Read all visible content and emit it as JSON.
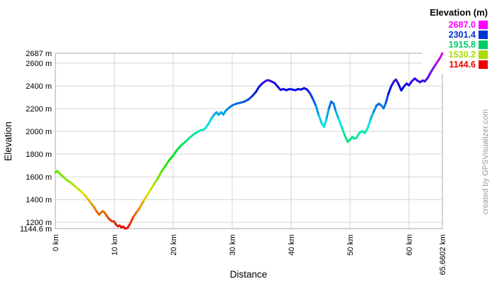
{
  "watermark": "created by GPSVisualizer.com",
  "axes": {
    "x_title": "Distance",
    "y_title": "Elevation",
    "y_ticks": [
      {
        "value": 2687,
        "label": "2687 m"
      },
      {
        "value": 2600,
        "label": "2600 m"
      },
      {
        "value": 2400,
        "label": "2400 m"
      },
      {
        "value": 2200,
        "label": "2200 m"
      },
      {
        "value": 2000,
        "label": "2000 m"
      },
      {
        "value": 1800,
        "label": "1800 m"
      },
      {
        "value": 1600,
        "label": "1600 m"
      },
      {
        "value": 1400,
        "label": "1400 m"
      },
      {
        "value": 1200,
        "label": "1200 m"
      },
      {
        "value": 1144.6,
        "label": "1144.6 m"
      }
    ],
    "x_ticks": [
      {
        "value": 0,
        "label": "0 km"
      },
      {
        "value": 10,
        "label": "10 km"
      },
      {
        "value": 20,
        "label": "20 km"
      },
      {
        "value": 30,
        "label": "30 km"
      },
      {
        "value": 40,
        "label": "40 km"
      },
      {
        "value": 50,
        "label": "50 km"
      },
      {
        "value": 60,
        "label": "60 km"
      },
      {
        "value": 65.6602,
        "label": "65.6602 km"
      }
    ]
  },
  "legend": {
    "title": "Elevation (m)",
    "entries": [
      {
        "value": "2687.0",
        "color": "#ff00ff"
      },
      {
        "value": "2301.4",
        "color": "#0033cc"
      },
      {
        "value": "1915.8",
        "color": "#00cc66"
      },
      {
        "value": "1530.2",
        "color": "#aadd00"
      },
      {
        "value": "1144.6",
        "color": "#ee0000"
      }
    ]
  },
  "colors": {
    "background": "#ffffff",
    "grid": "#d4d4d4",
    "border": "#aaaaaa",
    "watermark": "#999999",
    "tick_text": "#000000"
  },
  "chart_data": {
    "type": "line",
    "title": "",
    "xlabel": "Distance",
    "ylabel": "Elevation",
    "x_unit": "km",
    "y_unit": "m",
    "xlim": [
      0,
      65.6602
    ],
    "ylim": [
      1144.6,
      2687.0
    ],
    "grid": true,
    "legend_position": "top-right",
    "color_map": {
      "type": "elevation-rainbow",
      "hue_range_deg": [
        0,
        300
      ],
      "min_elevation": 1144.6,
      "max_elevation": 2687.0
    },
    "profile": [
      [
        0,
        1638
      ],
      [
        0.2,
        1650
      ],
      [
        0.45,
        1645
      ],
      [
        0.7,
        1630
      ],
      [
        1.1,
        1610
      ],
      [
        1.6,
        1587
      ],
      [
        2.1,
        1565
      ],
      [
        2.6,
        1550
      ],
      [
        3.1,
        1527
      ],
      [
        3.6,
        1505
      ],
      [
        4.1,
        1483
      ],
      [
        4.6,
        1460
      ],
      [
        5.1,
        1434
      ],
      [
        5.6,
        1398
      ],
      [
        6.1,
        1365
      ],
      [
        6.6,
        1330
      ],
      [
        7,
        1295
      ],
      [
        7.4,
        1268
      ],
      [
        7.7,
        1283
      ],
      [
        8,
        1298
      ],
      [
        8.3,
        1288
      ],
      [
        8.7,
        1258
      ],
      [
        9.1,
        1230
      ],
      [
        9.5,
        1213
      ],
      [
        10,
        1205
      ],
      [
        10.3,
        1180
      ],
      [
        10.6,
        1165
      ],
      [
        10.9,
        1172
      ],
      [
        11.2,
        1155
      ],
      [
        11.5,
        1163
      ],
      [
        11.8,
        1146
      ],
      [
        12.1,
        1148
      ],
      [
        12.35,
        1158
      ],
      [
        12.7,
        1190
      ],
      [
        13.2,
        1245
      ],
      [
        13.8,
        1290
      ],
      [
        14.4,
        1335
      ],
      [
        15,
        1392
      ],
      [
        15.6,
        1440
      ],
      [
        16.2,
        1490
      ],
      [
        16.8,
        1540
      ],
      [
        17.4,
        1588
      ],
      [
        18,
        1645
      ],
      [
        18.6,
        1690
      ],
      [
        19.3,
        1745
      ],
      [
        20,
        1788
      ],
      [
        20.7,
        1840
      ],
      [
        21.4,
        1880
      ],
      [
        22.1,
        1910
      ],
      [
        22.8,
        1945
      ],
      [
        23.5,
        1975
      ],
      [
        24.2,
        1998
      ],
      [
        24.7,
        2010
      ],
      [
        25.3,
        2018
      ],
      [
        25.9,
        2060
      ],
      [
        26.5,
        2115
      ],
      [
        27,
        2150
      ],
      [
        27.35,
        2168
      ],
      [
        27.7,
        2145
      ],
      [
        28.1,
        2168
      ],
      [
        28.5,
        2148
      ],
      [
        28.9,
        2180
      ],
      [
        29.4,
        2205
      ],
      [
        30,
        2228
      ],
      [
        30.7,
        2243
      ],
      [
        31.4,
        2252
      ],
      [
        32.1,
        2262
      ],
      [
        32.8,
        2282
      ],
      [
        33.4,
        2310
      ],
      [
        34,
        2345
      ],
      [
        34.6,
        2395
      ],
      [
        35.2,
        2425
      ],
      [
        35.8,
        2447
      ],
      [
        36.2,
        2450
      ],
      [
        36.7,
        2438
      ],
      [
        37.2,
        2425
      ],
      [
        37.7,
        2395
      ],
      [
        38.2,
        2365
      ],
      [
        38.7,
        2372
      ],
      [
        39.2,
        2362
      ],
      [
        39.7,
        2372
      ],
      [
        40.2,
        2368
      ],
      [
        40.7,
        2362
      ],
      [
        41.2,
        2372
      ],
      [
        41.7,
        2368
      ],
      [
        42.2,
        2380
      ],
      [
        42.7,
        2368
      ],
      [
        43.2,
        2335
      ],
      [
        43.7,
        2285
      ],
      [
        44.2,
        2225
      ],
      [
        44.7,
        2140
      ],
      [
        45.2,
        2070
      ],
      [
        45.6,
        2040
      ],
      [
        46,
        2110
      ],
      [
        46.4,
        2200
      ],
      [
        46.8,
        2262
      ],
      [
        47.2,
        2245
      ],
      [
        47.6,
        2175
      ],
      [
        48.1,
        2105
      ],
      [
        48.6,
        2035
      ],
      [
        49.1,
        1965
      ],
      [
        49.6,
        1908
      ],
      [
        50,
        1928
      ],
      [
        50.4,
        1952
      ],
      [
        50.7,
        1935
      ],
      [
        51.1,
        1943
      ],
      [
        51.6,
        1988
      ],
      [
        52.1,
        2002
      ],
      [
        52.5,
        1985
      ],
      [
        53,
        2030
      ],
      [
        53.5,
        2108
      ],
      [
        54,
        2172
      ],
      [
        54.5,
        2228
      ],
      [
        54.9,
        2243
      ],
      [
        55.3,
        2228
      ],
      [
        55.7,
        2202
      ],
      [
        56.1,
        2255
      ],
      [
        56.5,
        2330
      ],
      [
        57,
        2398
      ],
      [
        57.5,
        2443
      ],
      [
        57.8,
        2455
      ],
      [
        58.2,
        2418
      ],
      [
        58.7,
        2360
      ],
      [
        59.2,
        2398
      ],
      [
        59.6,
        2420
      ],
      [
        60,
        2405
      ],
      [
        60.5,
        2442
      ],
      [
        61,
        2465
      ],
      [
        61.4,
        2447
      ],
      [
        61.9,
        2432
      ],
      [
        62.3,
        2447
      ],
      [
        62.7,
        2440
      ],
      [
        63.2,
        2472
      ],
      [
        63.7,
        2520
      ],
      [
        64.2,
        2562
      ],
      [
        64.7,
        2602
      ],
      [
        65.1,
        2632
      ],
      [
        65.4,
        2658
      ],
      [
        65.66,
        2687
      ]
    ]
  }
}
